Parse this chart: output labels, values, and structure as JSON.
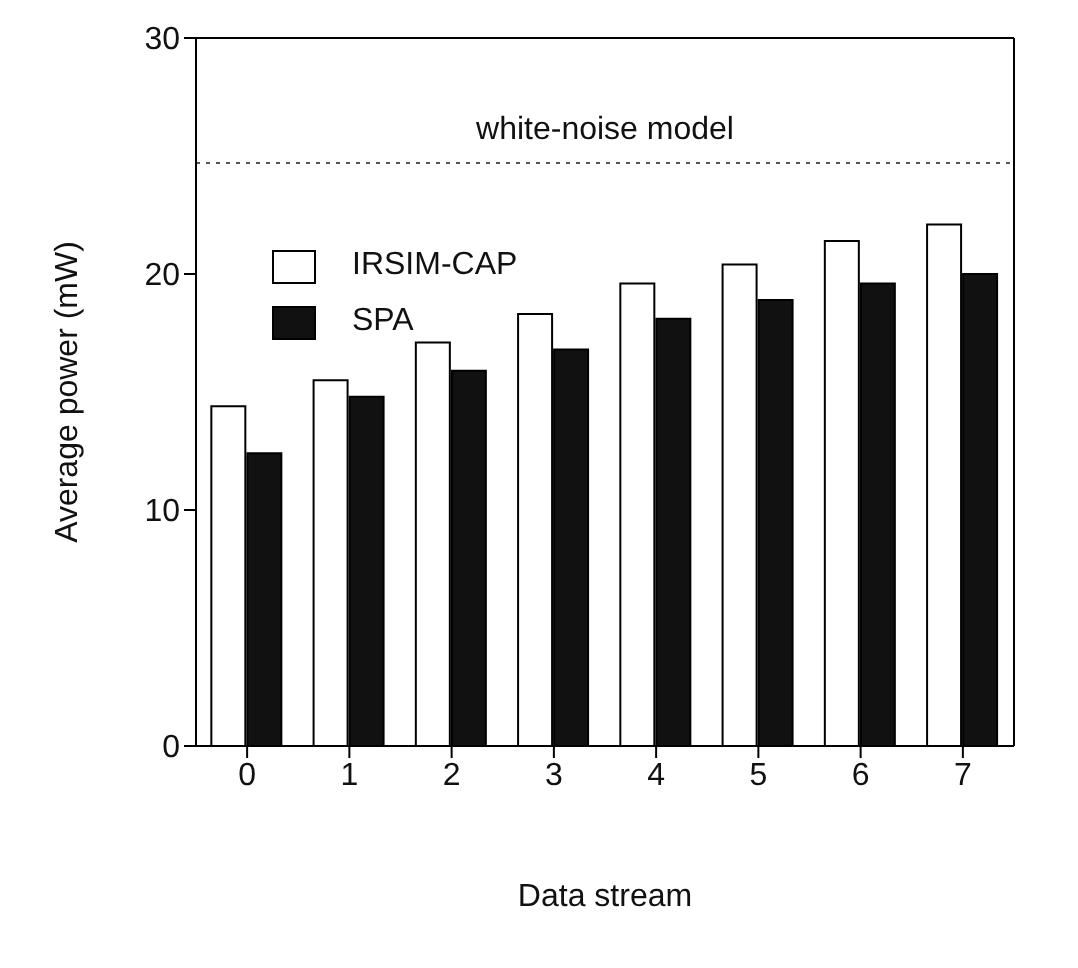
{
  "chart_data": {
    "type": "bar",
    "xlabel": "Data stream",
    "ylabel": "Average power (mW)",
    "categories": [
      "0",
      "1",
      "2",
      "3",
      "4",
      "5",
      "6",
      "7"
    ],
    "series": [
      {
        "name": "IRSIM-CAP",
        "color": "#ffffff",
        "values": [
          14.4,
          15.5,
          17.1,
          18.3,
          19.6,
          20.4,
          21.4,
          22.1
        ]
      },
      {
        "name": "SPA",
        "color": "#111111",
        "values": [
          12.4,
          14.8,
          15.9,
          16.8,
          18.1,
          18.9,
          19.6,
          20.0
        ]
      }
    ],
    "ylim": [
      0,
      30
    ],
    "yticks": [
      0,
      10,
      20,
      30
    ],
    "grid": false,
    "legend": "top left",
    "ref_lines": [
      {
        "axis": "y",
        "value": 24.7,
        "label": "white-noise model",
        "color": "#555555",
        "line_style": "dotted"
      }
    ]
  }
}
